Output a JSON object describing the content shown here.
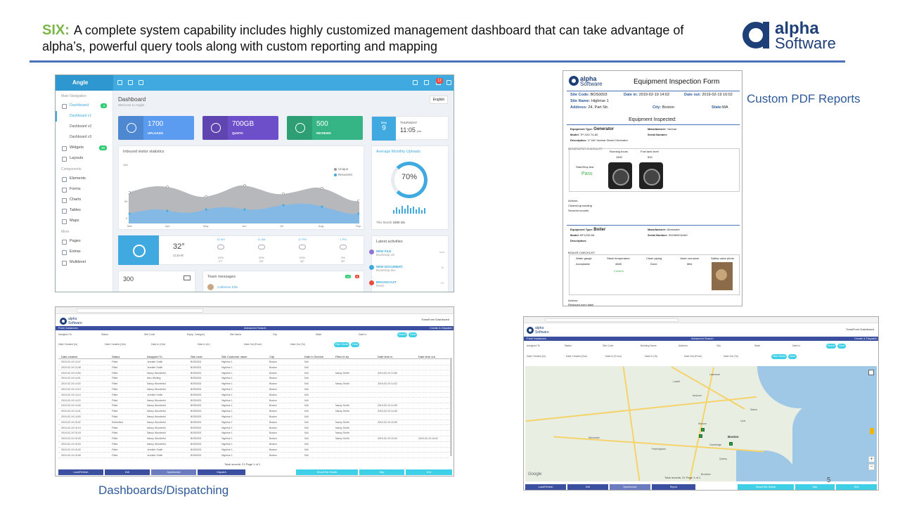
{
  "slide": {
    "heading_prefix": "SIX:",
    "heading": "A complete system capability includes highly customized management dashboard that can take advantage of alpha’s, powerful query tools along with custom reporting and mapping",
    "logo_line1": "alpha",
    "logo_line2": "Software",
    "caption_pdf": "Custom PDF Reports",
    "caption_dispatch": "Dashboards/Dispatching",
    "slide_number": "5"
  },
  "dashboard": {
    "brand": "Angle",
    "page_title": "Dashboard",
    "page_subtitle": "Welcome to Angle!",
    "language": "English",
    "notif_count": "12",
    "sidebar": {
      "header_main": "Main Navigation",
      "dashboard": "Dashboard",
      "dashboard_badge": "3",
      "sub": [
        "Dashboard v1",
        "Dashboard v2",
        "Dashboard v3"
      ],
      "widgets": "Widgets",
      "widgets_badge": "30",
      "layouts": "Layouts",
      "header_components": "Components",
      "components": [
        "Elements",
        "Forms",
        "Charts",
        "Tables",
        "Maps"
      ],
      "header_more": "More",
      "more": [
        "Pages",
        "Extras",
        "Multilevel"
      ]
    },
    "tiles": [
      {
        "value": "1700",
        "label": "UPLOADS",
        "color": "#5b9bf0"
      },
      {
        "value": "700GB",
        "label": "QUOTA",
        "color": "#6d4fc9"
      },
      {
        "value": "500",
        "label": "REVIEWS",
        "color": "#35b586"
      }
    ],
    "date_tile": {
      "month": "May",
      "day": "9",
      "weekday": "THURSDAY",
      "time": "11:05",
      "ampm": "pm"
    },
    "chart": {
      "title": "Inbound visitor statistics",
      "legend_unique": "Unique",
      "legend_recurrent": "Recurrent",
      "yticks": [
        "100",
        "50",
        "0"
      ],
      "months": [
        "Mar",
        "Apr",
        "May",
        "Jun",
        "Jul",
        "Aug",
        "Sep"
      ]
    },
    "uploads": {
      "title": "Average Monthly Uploads",
      "percent": "70%",
      "percent_value": 70,
      "footer": "This Month",
      "footer_value": "1000 Gb"
    },
    "weather": {
      "temp": "32°",
      "cond": "CLEAR",
      "hours": [
        {
          "time": "10 AM",
          "temp": "20%",
          "deg": "27°"
        },
        {
          "time": "11 AM",
          "temp": "30%",
          "deg": "28°"
        },
        {
          "time": "12 PM",
          "temp": "20%",
          "deg": "30°"
        },
        {
          "time": "1 PM",
          "temp": "0%",
          "deg": "30°"
        }
      ]
    },
    "stat_300": "300",
    "team": {
      "title": "Team messages",
      "badge1": "12",
      "badge2": "5",
      "member": "Catherine Ellis"
    },
    "activities": {
      "title": "Latest activities",
      "items": [
        {
          "name": "NEW FILE",
          "desc": "Bootstrap.xls",
          "time": "now",
          "color": "#8e73d6"
        },
        {
          "name": "NEW DOCUMENT",
          "desc": "Bootstrap.doc",
          "time": "1h",
          "color": "#3fa9e0"
        },
        {
          "name": "BROADCAST",
          "desc": "Read",
          "time": "2h",
          "color": "#e74c3c"
        }
      ]
    }
  },
  "pdf_form": {
    "logo1": "alpha",
    "logo2": "Software",
    "title": "Equipment Inspection Form",
    "site_code_label": "Site Code:",
    "site_code": "BOS0003",
    "date_in_label": "Date in:",
    "date_in": "2019-02-19 14:02",
    "date_out_label": "Date out:",
    "date_out": "2019-02-19 16:02",
    "site_name_label": "Site Name:",
    "site_name": "Highrise 1",
    "address_label": "Address:",
    "address": "24, Part Str.",
    "city_label": "City:",
    "city": "Boston",
    "state_label": "State:",
    "state": "MA",
    "section": "Equipment Inspected:",
    "eq1": {
      "type_label": "Equipment Type:",
      "type": "Generator",
      "model_label": "Model:",
      "model": "TP-X20-T4-80",
      "desc_label": "Description:",
      "desc": "17 kW Yanmar Diesel Generator",
      "mfr_label": "Manufacturer:",
      "mfr": "Yanmar",
      "serial_label": "Serial Number:",
      "checklist": "GENERATOR CHECKLIST",
      "startstop": "Start/Stop test",
      "startstop_val": "Pass",
      "hours_label": "Running hours",
      "hours": "1500",
      "fuel_label": "Fuel tank level",
      "fuel": "500",
      "actions_label": "Actions:",
      "actions": [
        "Cleaned grounding",
        "Secured mounts"
      ]
    },
    "eq2": {
      "type_label": "Equipment Type:",
      "type": "Boiler",
      "model_label": "Model:",
      "model": "BF1200-A5",
      "desc_label": "Description:",
      "mfr_label": "Manufacturer:",
      "mfr": "Worcester",
      "serial_label": "Serial Number:",
      "serial": "3111BMCA0A0",
      "checklist": "BOILER CHECKLIST",
      "cols": [
        "Water gauge",
        "Stack temperature",
        "Clean piping",
        "Valve corrosion",
        "Safety valve photo"
      ],
      "vals": [
        "Acceptable",
        "4665",
        "Done",
        "Mild"
      ],
      "confirm": "Confirm",
      "actions_label": "Actions:",
      "actions": [
        "Replaced worn label"
      ]
    }
  },
  "dispatch": {
    "top_right": "TransForm Dashboard",
    "band_left": "Form Instances",
    "band_mid": "Advanced Search",
    "band_right": "Create & Dispatch",
    "filters_row1": [
      "Assigned To",
      "Status",
      "Site Code",
      "Equip. Category",
      "Site Name",
      "City",
      "State",
      "Date In"
    ],
    "filters_row2": [
      "Date Created (In)",
      "Date Created (Out)",
      "Date In (Out)",
      "Date In (In)",
      "Date Out (From)",
      "Date Out (To)"
    ],
    "btn_search": "Search",
    "btn_clear": "Clear",
    "btn_filter": "Filter Stores",
    "columns": [
      "Date created",
      "Status",
      "Assigned To",
      "Site code",
      "Site Customer name",
      "City",
      "Date in Service",
      "Filled in by",
      "Date time in",
      "Date time out"
    ],
    "rows": [
      [
        "2019-02-19 13:47",
        "Filled",
        "Jennifer Smith",
        "BOS0003",
        "Highrise 1",
        "Boston",
        "N/A",
        "",
        "",
        ""
      ],
      [
        "2019-02-19 13:48",
        "Filled",
        "Jennifer Smith",
        "BOS0003",
        "Highrise 1",
        "Boston",
        "N/A",
        "",
        "",
        ""
      ],
      [
        "2019-02-19 13:50",
        "Filled",
        "Nancy Wonderful",
        "BOS0003",
        "Highrise 1",
        "Boston",
        "N/A",
        "Nancy Smith",
        "2019-02-19 13:55",
        ""
      ],
      [
        "2019-02-19 14:01",
        "Filled",
        "Alex Whiting",
        "BOS0003",
        "Highrise 1",
        "Boston",
        "N/A",
        "",
        "",
        ""
      ],
      [
        "2019-02-19 14:02",
        "Filled",
        "Nancy Wonderful",
        "BOS0003",
        "Highrise 1",
        "Boston",
        "N/A",
        "Nancy Smith",
        "2019-02-19 14:02",
        ""
      ],
      [
        "2019-02-19 14:10",
        "Filled",
        "Nancy Wonderful",
        "BOS0003",
        "Highrise 1",
        "Boston",
        "N/A",
        "",
        "",
        ""
      ],
      [
        "2019-02-19 14:14",
        "Filled",
        "Jennifer Smith",
        "BOS0003",
        "Highrise 1",
        "Boston",
        "N/A",
        "",
        "",
        ""
      ],
      [
        "2019-02-19 14:22",
        "Filled",
        "Nancy Wonderful",
        "BOS0003",
        "Highrise 1",
        "Boston",
        "N/A",
        "",
        "",
        ""
      ],
      [
        "2019-02-19 14:30",
        "Filled",
        "Nancy Wonderful",
        "BOS0003",
        "Highrise 1",
        "Boston",
        "N/A",
        "Nancy Smith",
        "2019-02-19 14:35",
        ""
      ],
      [
        "2019-02-19 14:41",
        "Filled",
        "Nancy Wonderful",
        "BOS0003",
        "Highrise 1",
        "Boston",
        "N/A",
        "Nancy Smith",
        "2019-02-19 14:45",
        ""
      ],
      [
        "2019-02-19 14:50",
        "Filled",
        "Nancy Wonderful",
        "BOS0003",
        "Highrise 1",
        "Boston",
        "N/A",
        "",
        "",
        ""
      ],
      [
        "2019-02-19 15:02",
        "Submitted",
        "Nancy Wonderful",
        "BOS0003",
        "Highrise 1",
        "Boston",
        "N/A",
        "Nancy Smith",
        "2019-02-19 15:05",
        ""
      ],
      [
        "2019-02-19 15:10",
        "Filled",
        "Nancy Wonderful",
        "BOS0003",
        "Highrise 1",
        "Boston",
        "N/A",
        "Nancy Smith",
        "",
        ""
      ],
      [
        "2019-02-19 15:18",
        "Filled",
        "Nancy Wonderful",
        "BOS0003",
        "Highrise 1",
        "Boston",
        "N/A",
        "Nancy Smith",
        "",
        ""
      ],
      [
        "2019-02-19 15:25",
        "Filled",
        "Nancy Wonderful",
        "BOS0003",
        "Highrise 1",
        "Boston",
        "N/A",
        "Nancy Smith",
        "2019-02-19 15:30",
        "2019-02-19 16:02"
      ],
      [
        "2019-02-19 15:33",
        "Filled",
        "Nancy Wonderful",
        "BOS0003",
        "Highrise 1",
        "Boston",
        "N/A",
        "",
        "",
        ""
      ],
      [
        "2019-02-19 15:40",
        "Filled",
        "Jennifer Smith",
        "BOS0003",
        "Highrise 1",
        "Boston",
        "N/A",
        "",
        "",
        ""
      ],
      [
        "2019-02-19 15:48",
        "Filled",
        "Jennifer Smith",
        "BOS0003",
        "Highrise 1",
        "Boston",
        "N/A",
        "",
        "",
        ""
      ]
    ],
    "pager": "Total records: 21   Page 1 of 1",
    "buttons": [
      "Load/Refresh",
      "Edit",
      "Synchronize",
      "Dispatch",
      "Show/Hide Details",
      "Map",
      "Grid"
    ]
  },
  "map_view": {
    "top_right": "TransForm Dashboard",
    "band_left": "Form Instances",
    "band_mid": "Advanced Search",
    "band_right": "Create & Dispatch",
    "filters_row1": [
      "Assigned To",
      "Status",
      "Site Code",
      "Building Name",
      "Address",
      "City",
      "State",
      "Date In"
    ],
    "filters_row2": [
      "Date Created (In)",
      "Date Created (Out)",
      "Date In (From)",
      "Date In (To)",
      "Date Out (From)",
      "Date Out (To)"
    ],
    "btn_search": "Search",
    "btn_clear": "Clear",
    "btn_filter": "Filter Stores",
    "city": "Boston",
    "towns": [
      "Lowell",
      "Lawrence",
      "Andover",
      "Woburn",
      "Cambridge",
      "Quincy",
      "Framingham",
      "Worcester",
      "Brockton",
      "Salem",
      "Lynn"
    ],
    "google": "Google",
    "pager": "Total records: 21   Page 1 of 1",
    "buttons": [
      "Load/Refresh",
      "Edit",
      "Synchronize",
      "Report",
      "Show/Hide Details",
      "Map",
      "Grid"
    ]
  }
}
